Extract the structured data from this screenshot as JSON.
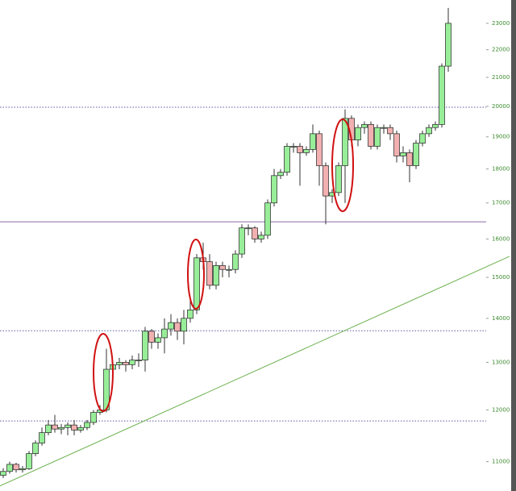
{
  "chart_data": {
    "type": "candlestick",
    "open": [
      10750,
      10820,
      10950,
      10850,
      10870,
      11150,
      11350,
      11550,
      11700,
      11620,
      11650,
      11700,
      11600,
      11650,
      11750,
      11950,
      12000,
      12850,
      12950,
      13000,
      12950,
      13050,
      13050,
      13700,
      13450,
      13550,
      13750,
      13900,
      13700,
      14000,
      14200,
      15500,
      15400,
      14800,
      15300,
      15200,
      15200,
      15600,
      16300,
      16300,
      16000,
      16100,
      17000,
      17800,
      17900,
      18700,
      18700,
      18500,
      18600,
      19100,
      18100,
      17200,
      17300,
      18100,
      19600,
      18900,
      19300,
      19400,
      18700,
      19300,
      19300,
      19100,
      18400,
      18500,
      18100,
      18800,
      19100,
      19300,
      19400,
      21400
    ],
    "high": [
      10880,
      11000,
      10980,
      10920,
      11200,
      11400,
      11650,
      11800,
      11900,
      11720,
      11750,
      11800,
      11700,
      11800,
      12000,
      12100,
      13300,
      13000,
      13100,
      13050,
      13150,
      13200,
      13800,
      13750,
      13650,
      14000,
      14100,
      14000,
      14200,
      14500,
      15600,
      15900,
      15600,
      15400,
      15400,
      15300,
      15700,
      16400,
      16400,
      16350,
      16200,
      17100,
      18000,
      18000,
      18800,
      18800,
      18800,
      18700,
      19400,
      19200,
      18200,
      17400,
      18200,
      19900,
      19700,
      19400,
      19500,
      19500,
      19400,
      19400,
      19400,
      19200,
      18700,
      18600,
      18900,
      19200,
      19400,
      19500,
      21500,
      23600
    ],
    "low": [
      10700,
      10780,
      10800,
      10800,
      10850,
      11100,
      11300,
      11500,
      11550,
      11520,
      11500,
      11500,
      11550,
      11600,
      11700,
      11900,
      11950,
      12800,
      12850,
      12800,
      12850,
      12900,
      12800,
      13300,
      13300,
      13200,
      13600,
      13500,
      13400,
      13900,
      14100,
      15200,
      14700,
      14700,
      15000,
      15000,
      15100,
      15500,
      16100,
      15900,
      15900,
      16000,
      16900,
      17700,
      17800,
      18500,
      17500,
      18400,
      18500,
      17500,
      16400,
      17000,
      17200,
      17000,
      18700,
      18700,
      19100,
      18600,
      18600,
      19100,
      18900,
      18200,
      18200,
      17600,
      18000,
      18700,
      19000,
      19200,
      19300,
      21200
    ],
    "close": [
      10820,
      10950,
      10850,
      10870,
      11150,
      11350,
      11550,
      11700,
      11620,
      11650,
      11700,
      11600,
      11650,
      11750,
      11950,
      12000,
      12850,
      12950,
      13000,
      12950,
      13050,
      13050,
      13700,
      13450,
      13550,
      13750,
      13900,
      13700,
      14000,
      14200,
      15500,
      15400,
      14800,
      15300,
      15200,
      15200,
      15600,
      16300,
      16300,
      16000,
      16100,
      17000,
      17800,
      17900,
      18700,
      18700,
      18500,
      18600,
      19100,
      18100,
      17200,
      17300,
      18100,
      19600,
      18900,
      19300,
      19400,
      18700,
      19300,
      19300,
      19100,
      18400,
      18500,
      18100,
      18800,
      19100,
      19300,
      19400,
      21400,
      23000
    ],
    "up_color": "#98ee98",
    "down_color": "#f2b0b0",
    "ylim": [
      10470,
      23920
    ],
    "log_scale": true,
    "yticks": [
      11000,
      12000,
      13000,
      14000,
      15000,
      16000,
      17000,
      18000,
      19000,
      20000,
      21000,
      22000,
      23000
    ],
    "hlines": [
      {
        "value": 19970,
        "style": "dotted",
        "color": "#5a5aa0"
      },
      {
        "value": 16470,
        "style": "solid",
        "color": "#8a6aa8"
      },
      {
        "value": 13710,
        "style": "dotted",
        "color": "#5a5aa0"
      },
      {
        "value": 11780,
        "style": "dotted",
        "color": "#5a5aa0"
      }
    ],
    "trendline": {
      "x": [
        -0.5,
        78.5
      ],
      "values": [
        10560,
        15540
      ],
      "color": "#6ab04c"
    }
  }
}
